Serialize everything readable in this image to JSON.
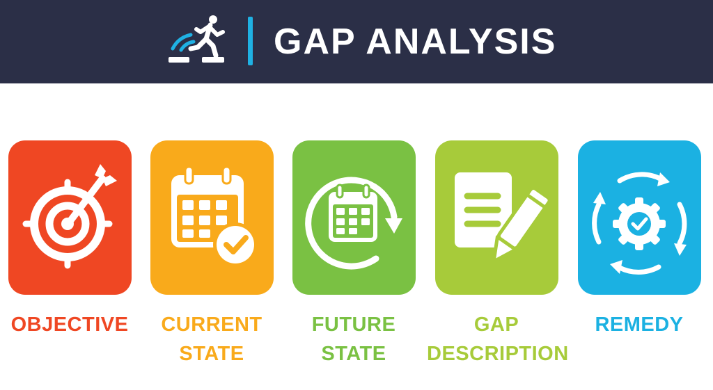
{
  "header": {
    "title": "GAP ANALYSIS",
    "logo_icon": "running-up-steps-icon",
    "background": "#2b2f47",
    "accent": "#1fb1e3"
  },
  "steps": [
    {
      "line1": "OBJECTIVE",
      "line2": "",
      "icon": "target-arrow-icon",
      "color": "#ef4723"
    },
    {
      "line1": "CURRENT",
      "line2": "STATE",
      "icon": "calendar-check-icon",
      "color": "#f9aa1b"
    },
    {
      "line1": "FUTURE",
      "line2": "STATE",
      "icon": "calendar-cycle-icon",
      "color": "#7ac143"
    },
    {
      "line1": "GAP",
      "line2": "DESCRIPTION",
      "icon": "document-pencil-icon",
      "color": "#a7cb3a"
    },
    {
      "line1": "REMEDY",
      "line2": "",
      "icon": "gear-cycle-check-icon",
      "color": "#1bb1e2"
    }
  ]
}
